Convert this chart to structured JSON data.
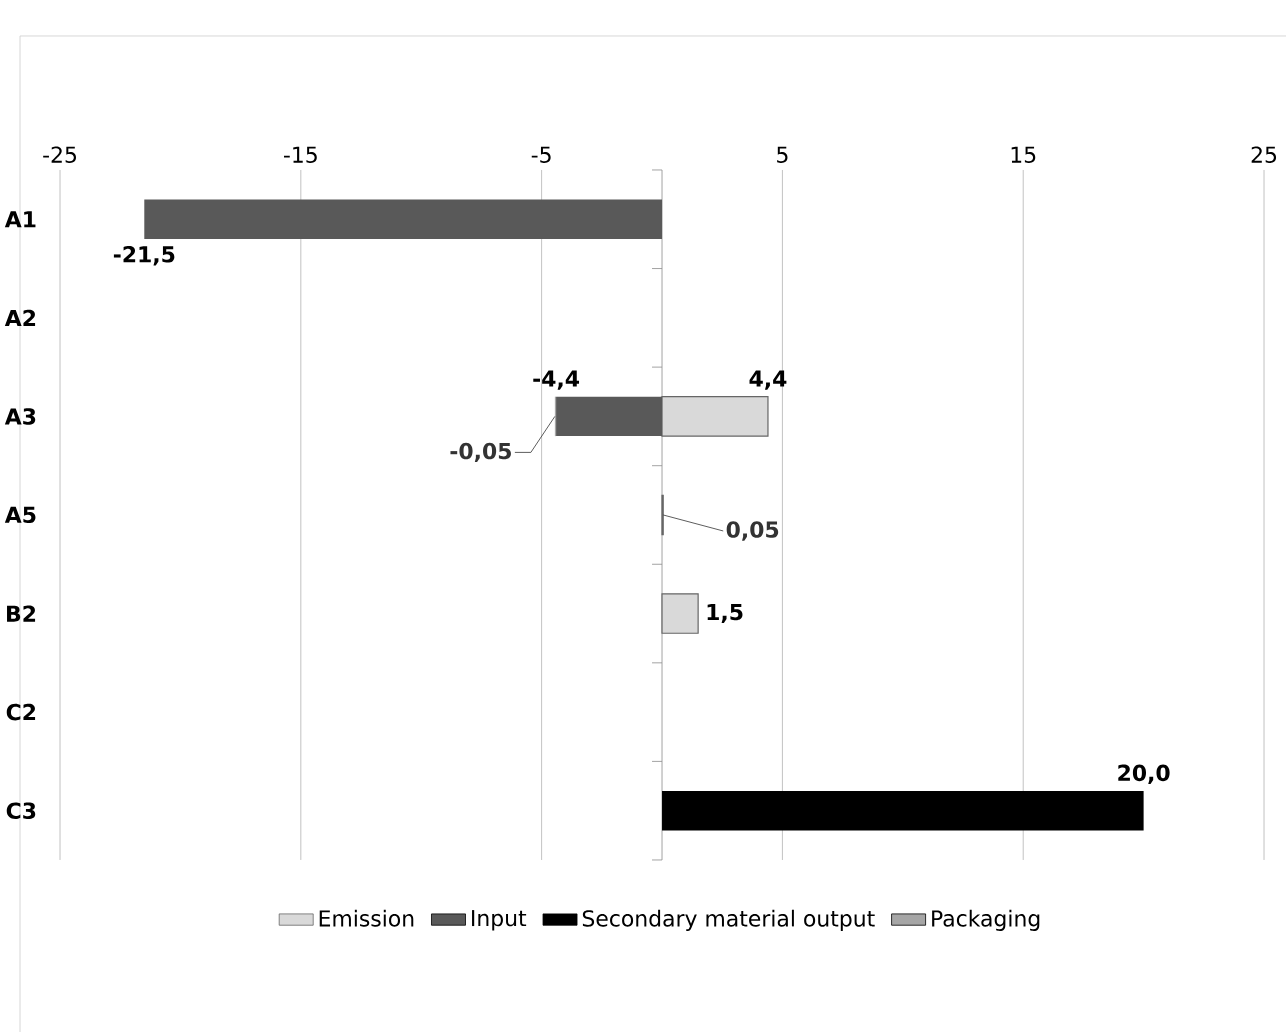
{
  "chart_data": {
    "type": "bar",
    "orientation": "horizontal",
    "stacked": true,
    "categories": [
      "A1",
      "A2",
      "A3",
      "A5",
      "B2",
      "C2",
      "C3"
    ],
    "series": [
      {
        "name": "Emission",
        "color": "#d9d9d9",
        "values": [
          null,
          null,
          4.4,
          0.05,
          1.5,
          null,
          null
        ],
        "value_labels": [
          null,
          null,
          "4,4",
          "0,05",
          "1,5",
          null,
          null
        ]
      },
      {
        "name": "Input",
        "color": "#595959",
        "values": [
          -21.5,
          null,
          -4.4,
          null,
          null,
          null,
          null
        ],
        "value_labels": [
          "-21,5",
          null,
          "-4,4",
          null,
          null,
          null,
          null
        ]
      },
      {
        "name": "Secondary material output",
        "color": "#000000",
        "values": [
          null,
          null,
          null,
          null,
          null,
          null,
          20.0
        ],
        "value_labels": [
          null,
          null,
          null,
          null,
          null,
          null,
          "20,0"
        ]
      },
      {
        "name": "Packaging",
        "color": "#a6a6a6",
        "values": [
          null,
          null,
          -0.05,
          null,
          null,
          null,
          null
        ],
        "value_labels": [
          null,
          null,
          "-0,05",
          null,
          null,
          null,
          null
        ]
      }
    ],
    "xlim": [
      -25,
      25
    ],
    "xticks": [
      -25,
      -15,
      -5,
      5,
      15,
      25
    ],
    "grid": "x",
    "legend": "bottom"
  }
}
